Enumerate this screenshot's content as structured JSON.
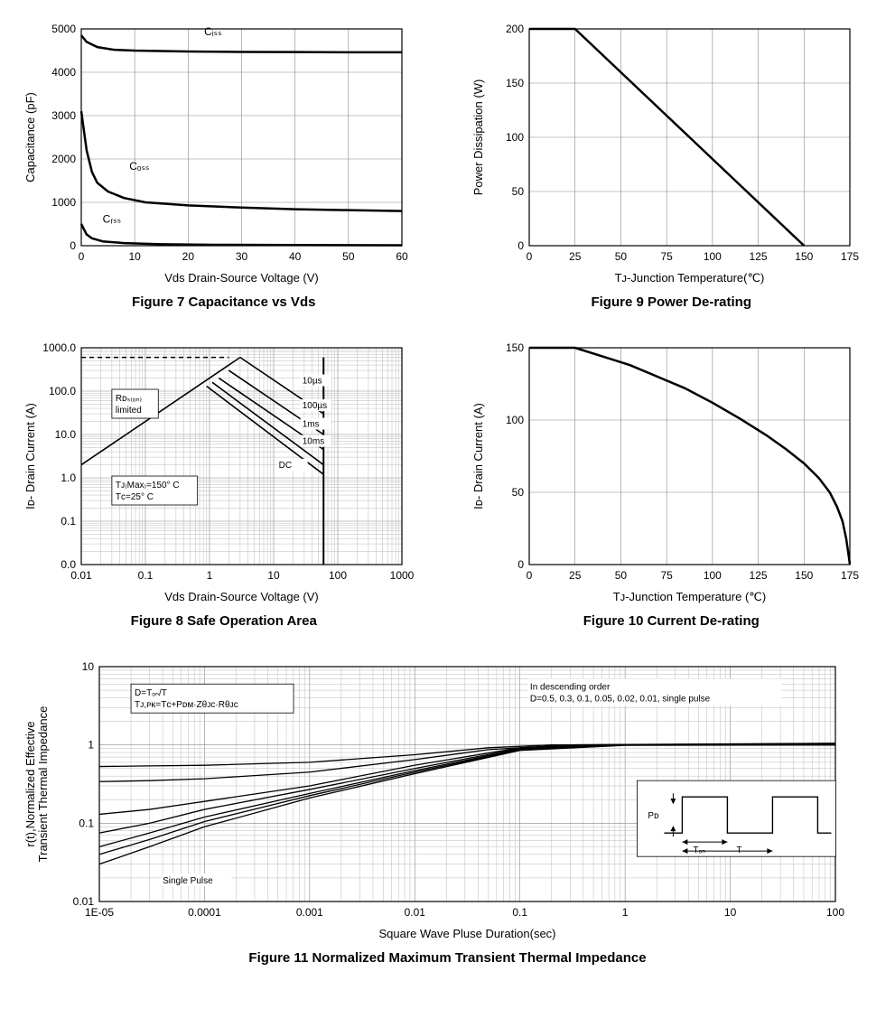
{
  "fig7": {
    "caption": "Figure 7 Capacitance vs Vds",
    "type": "line",
    "xlabel": "Vds Drain-Source Voltage (V)",
    "ylabel": "Capacitance (pF)",
    "xlim": [
      0,
      60
    ],
    "ylim": [
      0,
      5000
    ],
    "xticks": [
      0,
      10,
      20,
      30,
      40,
      50,
      60
    ],
    "yticks": [
      0,
      1000,
      2000,
      3000,
      4000,
      5000
    ],
    "background_color": "#ffffff",
    "grid_color": "#aaaaaa",
    "line_color": "#000000",
    "line_width": 2.5,
    "label_fontsize": 12,
    "series": {
      "Ciss": {
        "label": "Cᵢₛₛ",
        "points": [
          [
            0,
            4850
          ],
          [
            1,
            4700
          ],
          [
            3,
            4580
          ],
          [
            6,
            4520
          ],
          [
            10,
            4500
          ],
          [
            20,
            4480
          ],
          [
            30,
            4470
          ],
          [
            40,
            4465
          ],
          [
            50,
            4460
          ],
          [
            60,
            4460
          ]
        ],
        "label_xy": [
          23,
          4850
        ]
      },
      "Coss": {
        "label": "Cₒₛₛ",
        "points": [
          [
            0,
            3100
          ],
          [
            1,
            2200
          ],
          [
            2,
            1700
          ],
          [
            3,
            1450
          ],
          [
            5,
            1250
          ],
          [
            8,
            1100
          ],
          [
            12,
            1000
          ],
          [
            20,
            930
          ],
          [
            30,
            880
          ],
          [
            40,
            840
          ],
          [
            50,
            820
          ],
          [
            60,
            800
          ]
        ],
        "label_xy": [
          9,
          1750
        ]
      },
      "Crss": {
        "label": "Cᵣₛₛ",
        "points": [
          [
            0,
            500
          ],
          [
            1,
            260
          ],
          [
            2,
            170
          ],
          [
            4,
            100
          ],
          [
            8,
            60
          ],
          [
            15,
            35
          ],
          [
            25,
            22
          ],
          [
            40,
            15
          ],
          [
            60,
            10
          ]
        ],
        "label_xy": [
          4,
          530
        ]
      }
    }
  },
  "fig9": {
    "caption": "Figure 9 Power De-rating",
    "type": "line",
    "xlabel": "Tᴊ-Junction Temperature(℃)",
    "ylabel": "Power Dissipation (W)",
    "xlim": [
      0,
      175
    ],
    "ylim": [
      0,
      200
    ],
    "xticks": [
      0,
      25,
      50,
      75,
      100,
      125,
      150,
      175
    ],
    "yticks": [
      0,
      50,
      100,
      150,
      200
    ],
    "background_color": "#ffffff",
    "grid_color": "#aaaaaa",
    "line_color": "#000000",
    "line_width": 2.5,
    "points": [
      [
        0,
        200
      ],
      [
        25,
        200
      ],
      [
        150,
        0
      ]
    ]
  },
  "fig8": {
    "caption": "Figure 8 Safe Operation Area",
    "type": "loglog-line",
    "xlabel": "Vds Drain-Source Voltage (V)",
    "ylabel": "Iᴅ- Drain Current (A)",
    "xlim_log": [
      0.01,
      1000
    ],
    "ylim_log": [
      0.01,
      1000
    ],
    "xticks": [
      0.01,
      0.1,
      1,
      10,
      100,
      1000
    ],
    "yticks": [
      "0.0",
      "0.1",
      "1.0",
      "10.0",
      "100.0",
      "1000.0"
    ],
    "background_color": "#ffffff",
    "grid_color": "#888888",
    "line_color": "#000000",
    "line_width": 1.6,
    "annotations": {
      "rds": "Rᴅₛ₍ₒₙ₎\nlimited",
      "rds_xy": [
        0.03,
        110
      ],
      "tj": "Tᴊ₍Max₎=150° C\nTᴄ=25° C",
      "tj_xy": [
        0.03,
        1.1
      ],
      "curve_10us": "10µs",
      "c10us_xy": [
        28,
        150
      ],
      "curve_100us": "100µs",
      "c100us_xy": [
        28,
        40
      ],
      "curve_1ms": "1ms",
      "c1ms_xy": [
        28,
        15
      ],
      "curve_10ms": "10ms",
      "c10ms_xy": [
        28,
        6
      ],
      "curve_dc": "DC",
      "cdc_xy": [
        12,
        1.7
      ]
    },
    "id_max_dash": [
      [
        0.01,
        600
      ],
      [
        2,
        600
      ]
    ],
    "vds_max": 60,
    "curves": {
      "rds_line": [
        [
          0.01,
          2
        ],
        [
          3,
          600
        ]
      ],
      "10us": [
        [
          3,
          600
        ],
        [
          60,
          30
        ]
      ],
      "100us": [
        [
          2,
          300
        ],
        [
          60,
          10
        ]
      ],
      "1ms": [
        [
          1.4,
          200
        ],
        [
          60,
          4.5
        ]
      ],
      "10ms": [
        [
          1.1,
          160
        ],
        [
          60,
          2
        ]
      ],
      "dc": [
        [
          0.9,
          130
        ],
        [
          60,
          1.2
        ]
      ]
    }
  },
  "fig10": {
    "caption": "Figure 10 Current De-rating",
    "type": "line",
    "xlabel": "Tᴊ-Junction Temperature (℃)",
    "ylabel": "Iᴅ- Drain Current (A)",
    "xlim": [
      0,
      175
    ],
    "ylim": [
      0,
      150
    ],
    "xticks": [
      0,
      25,
      50,
      75,
      100,
      125,
      150,
      175
    ],
    "yticks": [
      0,
      50,
      100,
      150
    ],
    "background_color": "#ffffff",
    "grid_color": "#aaaaaa",
    "line_color": "#000000",
    "line_width": 2.5,
    "points": [
      [
        0,
        150
      ],
      [
        25,
        150
      ],
      [
        40,
        144
      ],
      [
        55,
        138
      ],
      [
        70,
        130
      ],
      [
        85,
        122
      ],
      [
        100,
        112
      ],
      [
        115,
        101
      ],
      [
        130,
        89
      ],
      [
        140,
        80
      ],
      [
        150,
        70
      ],
      [
        158,
        60
      ],
      [
        164,
        50
      ],
      [
        168,
        40
      ],
      [
        171,
        30
      ],
      [
        173,
        18
      ],
      [
        174.5,
        5
      ],
      [
        175,
        0
      ]
    ]
  },
  "fig11": {
    "caption": "Figure 11 Normalized Maximum Transient Thermal Impedance",
    "type": "loglog-line",
    "xlabel": "Square Wave Pluse Duration(sec)",
    "ylabel": "r(t),Normalized Effective\nTransient Thermal Impedance",
    "xlim_log": [
      1e-05,
      100
    ],
    "ylim_log": [
      0.01,
      10
    ],
    "xticks": [
      "1E-05",
      "0.0001",
      "0.001",
      "0.01",
      "0.1",
      "1",
      "10",
      "100"
    ],
    "yticks": [
      "0.01",
      "0.1",
      "1",
      "10"
    ],
    "background_color": "#ffffff",
    "grid_color": "#888888",
    "line_color": "#000000",
    "line_width": 1.4,
    "annotations": {
      "formula": "D=Tₒₙ/T\nTᴊ,ᴘᴋ=Tᴄ+Pᴅᴍ·Zθᴊᴄ·Rθᴊᴄ",
      "formula_xy": [
        2e-05,
        6
      ],
      "order": "In descending order\nD=0.5, 0.3, 0.1, 0.05, 0.02, 0.01, single pulse",
      "order_xy": [
        0.12,
        7
      ],
      "single": "Single Pulse",
      "single_xy": [
        4e-05,
        0.017
      ]
    },
    "inset": {
      "pd": "Pᴅ",
      "ton": "Tₒₙ",
      "t": "T"
    },
    "curves": {
      "d0.5": [
        [
          1e-05,
          0.53
        ],
        [
          3e-05,
          0.54
        ],
        [
          0.0001,
          0.55
        ],
        [
          0.001,
          0.6
        ],
        [
          0.01,
          0.75
        ],
        [
          0.05,
          0.92
        ],
        [
          0.2,
          1.0
        ],
        [
          100,
          1.05
        ]
      ],
      "d0.3": [
        [
          1e-05,
          0.34
        ],
        [
          3e-05,
          0.35
        ],
        [
          0.0001,
          0.37
        ],
        [
          0.001,
          0.45
        ],
        [
          0.01,
          0.65
        ],
        [
          0.05,
          0.87
        ],
        [
          0.3,
          1.0
        ],
        [
          100,
          1.04
        ]
      ],
      "d0.1": [
        [
          1e-05,
          0.13
        ],
        [
          3e-05,
          0.15
        ],
        [
          0.0001,
          0.19
        ],
        [
          0.001,
          0.3
        ],
        [
          0.01,
          0.55
        ],
        [
          0.1,
          0.92
        ],
        [
          0.5,
          1.0
        ],
        [
          100,
          1.03
        ]
      ],
      "d0.05": [
        [
          1e-05,
          0.075
        ],
        [
          3e-05,
          0.1
        ],
        [
          0.0001,
          0.15
        ],
        [
          0.001,
          0.27
        ],
        [
          0.01,
          0.5
        ],
        [
          0.1,
          0.9
        ],
        [
          1,
          1.0
        ],
        [
          100,
          1.02
        ]
      ],
      "d0.02": [
        [
          1e-05,
          0.05
        ],
        [
          3e-05,
          0.075
        ],
        [
          0.0001,
          0.12
        ],
        [
          0.001,
          0.24
        ],
        [
          0.01,
          0.47
        ],
        [
          0.1,
          0.88
        ],
        [
          1,
          1.0
        ],
        [
          100,
          1.01
        ]
      ],
      "d0.01": [
        [
          1e-05,
          0.04
        ],
        [
          3e-05,
          0.062
        ],
        [
          0.0001,
          0.105
        ],
        [
          0.001,
          0.225
        ],
        [
          0.01,
          0.45
        ],
        [
          0.1,
          0.86
        ],
        [
          1,
          1.0
        ],
        [
          100,
          1.0
        ]
      ],
      "single": [
        [
          1e-05,
          0.03
        ],
        [
          3e-05,
          0.05
        ],
        [
          0.0001,
          0.09
        ],
        [
          0.001,
          0.21
        ],
        [
          0.01,
          0.43
        ],
        [
          0.1,
          0.85
        ],
        [
          1,
          0.99
        ],
        [
          100,
          1.0
        ]
      ]
    }
  }
}
